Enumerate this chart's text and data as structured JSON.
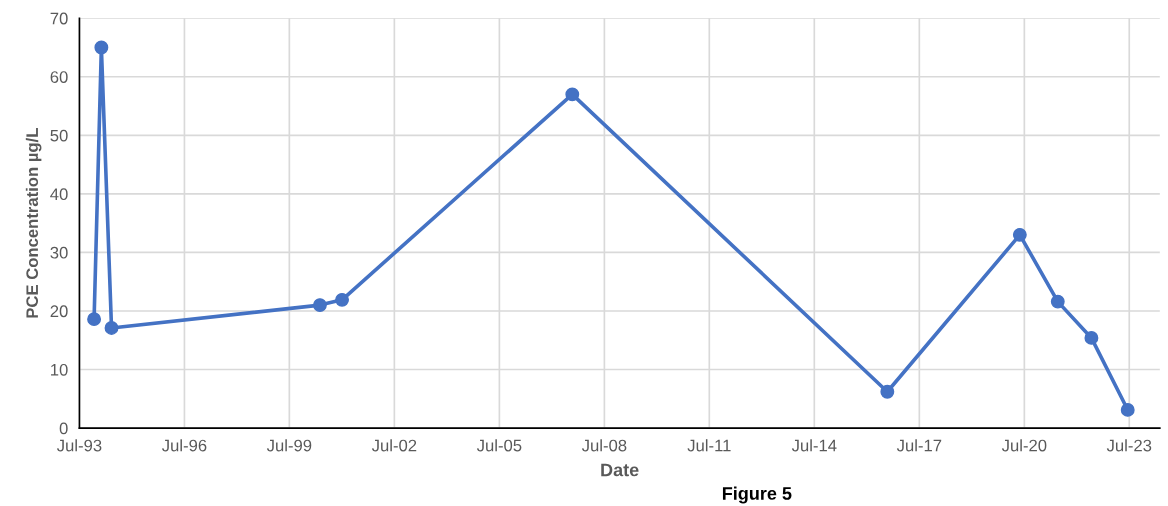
{
  "chart_data": {
    "type": "line",
    "xlabel": "Date",
    "ylabel": "PCE Concentration µg/L",
    "annotations": [
      "Figure 5"
    ],
    "x": [
      "1993-12-01",
      "1994-02-15",
      "1994-06-01",
      "2000-05-15",
      "2001-01-01",
      "2007-08-01",
      "2016-08-01",
      "2020-05-15",
      "2021-06-15",
      "2022-06-01",
      "2023-06-15"
    ],
    "series": [
      {
        "color": "#4472c4",
        "values": [
          18.6,
          65,
          17.1,
          21,
          21.9,
          57,
          6.2,
          33,
          21.6,
          15.4,
          3.1
        ]
      }
    ],
    "xlim": [
      "1993-07-01",
      "2024-05-15"
    ],
    "xticks": [
      {
        "value": "1993-07-01",
        "label": "Jul-93"
      },
      {
        "value": "1996-07-01",
        "label": "Jul-96"
      },
      {
        "value": "1999-07-01",
        "label": "Jul-99"
      },
      {
        "value": "2002-07-01",
        "label": "Jul-02"
      },
      {
        "value": "2005-07-01",
        "label": "Jul-05"
      },
      {
        "value": "2008-07-01",
        "label": "Jul-08"
      },
      {
        "value": "2011-07-01",
        "label": "Jul-11"
      },
      {
        "value": "2014-07-01",
        "label": "Jul-14"
      },
      {
        "value": "2017-07-01",
        "label": "Jul-17"
      },
      {
        "value": "2020-07-01",
        "label": "Jul-20"
      },
      {
        "value": "2023-07-01",
        "label": "Jul-23"
      }
    ],
    "ylim": [
      0,
      70
    ],
    "yticks": [
      0,
      10,
      20,
      30,
      40,
      50,
      60,
      70
    ],
    "grid": true,
    "marker": "circle",
    "line_style": "solid"
  }
}
